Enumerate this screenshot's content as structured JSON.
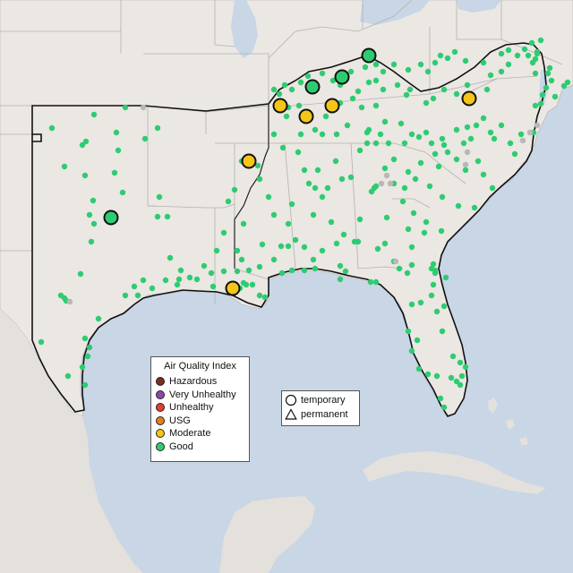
{
  "legend": {
    "title": "Air Quality Index",
    "levels": [
      {
        "label": "Hazardous",
        "color": "#7e2c1f"
      },
      {
        "label": "Very Unhealthy",
        "color": "#8c4aa8"
      },
      {
        "label": "Unhealthy",
        "color": "#e0402c"
      },
      {
        "label": "USG",
        "color": "#e87c22"
      },
      {
        "label": "Moderate",
        "color": "#f5c518"
      },
      {
        "label": "Good",
        "color": "#2ecc71"
      }
    ]
  },
  "monitor_types": {
    "temporary_label": "temporary",
    "permanent_label": "permanent"
  },
  "colors": {
    "ocean": "#c8d6e6",
    "land": "#ebe7e3",
    "no_data": "#b8b8b8"
  }
}
